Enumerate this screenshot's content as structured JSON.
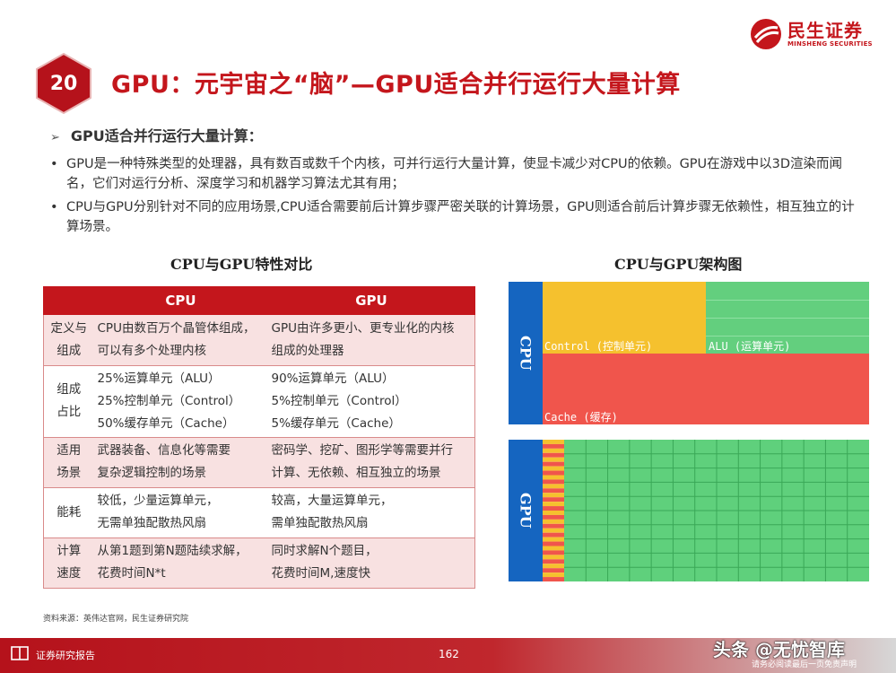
{
  "header": {
    "page_badge": "20",
    "title": "GPU：元宇宙之“脑”—GPU适合并行运行大量计算",
    "logo_cn": "民生证券",
    "logo_en": "MINSHENG SECURITIES"
  },
  "content": {
    "subheading": "GPU适合并行运行大量计算：",
    "bullets": [
      "GPU是一种特殊类型的处理器，具有数百或数千个内核，可并行运行大量计算，使显卡减少对CPU的依赖。GPU在游戏中以3D渲染而闻名，它们对运行分析、深度学习和机器学习算法尤其有用；",
      "CPU与GPU分别针对不同的应用场景,CPU适合需要前后计算步骤严密关联的计算场景，GPU则适合前后计算步骤无依赖性，相互独立的计算场景。"
    ]
  },
  "table": {
    "title": "CPU与GPU特性对比",
    "headers": [
      "",
      "CPU",
      "GPU"
    ],
    "rows": [
      {
        "label": [
          "定义与",
          "组成"
        ],
        "cpu": [
          "CPU由数百万个晶管体组成，",
          "可以有多个处理内核"
        ],
        "gpu": [
          "GPU由许多更小、更专业化的内核",
          "组成的处理器"
        ]
      },
      {
        "label": [
          "组成",
          "占比"
        ],
        "cpu": [
          "25%运算单元（ALU）",
          "25%控制单元（Control）",
          "50%缓存单元（Cache）"
        ],
        "gpu": [
          "90%运算单元（ALU）",
          "5%控制单元（Control）",
          "5%缓存单元（Cache）"
        ]
      },
      {
        "label": [
          "适用",
          "场景"
        ],
        "cpu": [
          "武器装备、信息化等需要",
          "复杂逻辑控制的场景"
        ],
        "gpu": [
          "密码学、挖矿、图形学等需要并行",
          "计算、无依赖、相互独立的场景"
        ]
      },
      {
        "label": [
          "能耗"
        ],
        "cpu": [
          "较低，少量运算单元，",
          "无需单独配散热风扇"
        ],
        "gpu": [
          "较高，大量运算单元，",
          "需单独配散热风扇"
        ]
      },
      {
        "label": [
          "计算",
          "速度"
        ],
        "cpu": [
          "从第1题到第N题陆续求解，",
          "花费时间N*t"
        ],
        "gpu": [
          "同时求解N个题目，",
          "花费时间M,速度快"
        ]
      }
    ],
    "source": "资料来源：英伟达官网，民生证券研究院"
  },
  "diagram": {
    "title": "CPU与GPU架构图",
    "cpu_label": "CPU",
    "gpu_label": "GPU",
    "control_label": "Control (控制单元)",
    "alu_label": "ALU (运算单元)",
    "cache_label": "Cache (缓存)",
    "colors": {
      "label_bg": "#1565c0",
      "control": "#f5c12e",
      "alu": "#63cf7e",
      "cache": "#f0554c"
    }
  },
  "footer": {
    "left": "证券研究报告",
    "page_number": "162",
    "watermark": "头条 @无忧智库",
    "note": "请务必阅读最后一页免责声明"
  }
}
